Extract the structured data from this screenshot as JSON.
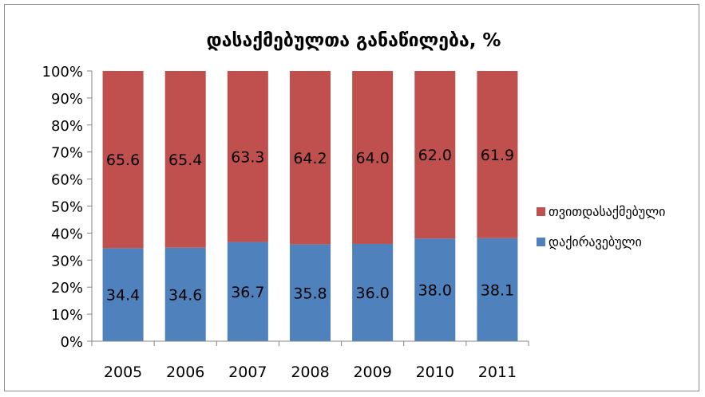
{
  "chart_data": {
    "type": "bar",
    "stacked": true,
    "title": "დასაქმებულთა განაწილება, %",
    "xlabel": "",
    "ylabel": "",
    "ylim": [
      0,
      100
    ],
    "y_ticks": [
      "0%",
      "10%",
      "20%",
      "30%",
      "40%",
      "50%",
      "60%",
      "70%",
      "80%",
      "90%",
      "100%"
    ],
    "grid": false,
    "legend_position": "right",
    "categories": [
      "2005",
      "2006",
      "2007",
      "2008",
      "2009",
      "2010",
      "2011"
    ],
    "series": [
      {
        "name": "დაქირავებული",
        "color": "#4f81bd",
        "values": [
          34.4,
          34.6,
          36.7,
          35.8,
          36.0,
          38.0,
          38.1
        ],
        "labels": [
          "34.4",
          "34.6",
          "36.7",
          "35.8",
          "36.0",
          "38.0",
          "38.1"
        ]
      },
      {
        "name": "თვითდასაქმებული",
        "color": "#c0504d",
        "values": [
          65.6,
          65.4,
          63.3,
          64.2,
          64.0,
          62.0,
          61.9
        ],
        "labels": [
          "65.6",
          "65.4",
          "63.3",
          "64.2",
          "64.0",
          "62.0",
          "61.9"
        ]
      }
    ],
    "legend": [
      "თვითდასაქმებული",
      "დაქირავებული"
    ]
  }
}
